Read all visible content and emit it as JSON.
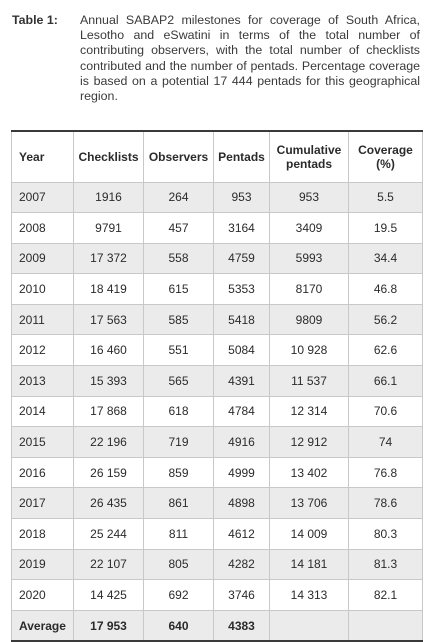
{
  "caption": {
    "label": "Table 1:",
    "text": "Annual SABAP2 milestones for coverage of South Africa, Lesotho and eSwatini in terms of the total number of contributing observers, with the total number of checklists contributed and the number of pentads. Percentage coverage is based on a potential 17 444 pentads for this geographical region."
  },
  "table": {
    "headers": [
      "Year",
      "Checklists",
      "Observers",
      "Pentads",
      "Cumulative pentads",
      "Coverage (%)"
    ],
    "rows": [
      [
        "2007",
        "1916",
        "264",
        "953",
        "953",
        "5.5"
      ],
      [
        "2008",
        "9791",
        "457",
        "3164",
        "3409",
        "19.5"
      ],
      [
        "2009",
        "17 372",
        "558",
        "4759",
        "5993",
        "34.4"
      ],
      [
        "2010",
        "18 419",
        "615",
        "5353",
        "8170",
        "46.8"
      ],
      [
        "2011",
        "17 563",
        "585",
        "5418",
        "9809",
        "56.2"
      ],
      [
        "2012",
        "16 460",
        "551",
        "5084",
        "10 928",
        "62.6"
      ],
      [
        "2013",
        "15 393",
        "565",
        "4391",
        "11 537",
        "66.1"
      ],
      [
        "2014",
        "17 868",
        "618",
        "4784",
        "12 314",
        "70.6"
      ],
      [
        "2015",
        "22 196",
        "719",
        "4916",
        "12 912",
        "74"
      ],
      [
        "2016",
        "26 159",
        "859",
        "4999",
        "13 402",
        "76.8"
      ],
      [
        "2017",
        "26 435",
        "861",
        "4898",
        "13 706",
        "78.6"
      ],
      [
        "2018",
        "25 244",
        "811",
        "4612",
        "14 009",
        "80.3"
      ],
      [
        "2019",
        "22 107",
        "805",
        "4282",
        "14 181",
        "81.3"
      ],
      [
        "2020",
        "14 425",
        "692",
        "3746",
        "14 313",
        "82.1"
      ]
    ],
    "footer": [
      "Average",
      "17 953",
      "640",
      "4383",
      "",
      ""
    ]
  }
}
